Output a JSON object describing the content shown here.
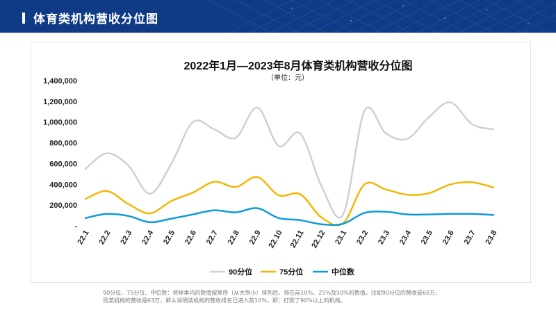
{
  "header": {
    "title": "体育类机构营收分位图"
  },
  "chart_data": {
    "type": "line",
    "title": "2022年1月—2023年8月体育类机构营收分位图",
    "subtitle": "（单位：元）",
    "categories": [
      "22.1",
      "22.2",
      "22.3",
      "22.4",
      "22.5",
      "22.6",
      "22.7",
      "22.8",
      "22.9",
      "22.10",
      "22.11",
      "22.12",
      "23.1",
      "23.2",
      "23.3",
      "23.4",
      "23.5",
      "23.6",
      "23.7",
      "23.8"
    ],
    "yticks": [
      "-",
      "200,000",
      "400,000",
      "600,000",
      "800,000",
      "1,000,000",
      "1,200,000",
      "1,400,000"
    ],
    "ylim": [
      0,
      1400000
    ],
    "series": [
      {
        "name": "90分位",
        "color": "#d0d0d0",
        "values": [
          550000,
          700000,
          580000,
          310000,
          600000,
          1000000,
          930000,
          850000,
          1140000,
          770000,
          890000,
          380000,
          110000,
          1110000,
          890000,
          840000,
          1050000,
          1190000,
          980000,
          930000
        ]
      },
      {
        "name": "75分位",
        "color": "#f2b705",
        "values": [
          260000,
          335000,
          210000,
          120000,
          240000,
          320000,
          425000,
          375000,
          470000,
          295000,
          305000,
          80000,
          25000,
          400000,
          350000,
          300000,
          315000,
          400000,
          420000,
          370000
        ]
      },
      {
        "name": "中位数",
        "color": "#0d9ad8",
        "values": [
          75000,
          115000,
          95000,
          35000,
          70000,
          110000,
          150000,
          130000,
          170000,
          75000,
          55000,
          15000,
          20000,
          125000,
          135000,
          110000,
          110000,
          115000,
          115000,
          105000
        ]
      }
    ],
    "legend_position": "bottom"
  },
  "footnote": [
    "90分位、75分位、中位数：将样本内的数值按降序（从大到小）排列后，排在前10%、25%及50%的数值。比如90分位的营收是60万，",
    "而某机构的营收是63万，那么说明该机构的营收排名已进入前10%，即：打败了90%以上的机构。"
  ]
}
